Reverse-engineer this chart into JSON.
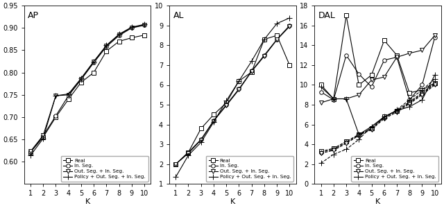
{
  "K": [
    1,
    2,
    3,
    4,
    5,
    6,
    7,
    8,
    9,
    10
  ],
  "AP": {
    "Real": [
      0.621,
      0.655,
      0.7,
      0.74,
      0.778,
      0.8,
      0.848,
      0.87,
      0.878,
      0.884
    ],
    "In_Seg": [
      0.622,
      0.658,
      0.703,
      0.748,
      0.784,
      0.822,
      0.858,
      0.883,
      0.9,
      0.906
    ],
    "Out_In_Seg": [
      0.623,
      0.659,
      0.748,
      0.75,
      0.786,
      0.824,
      0.86,
      0.885,
      0.901,
      0.907
    ],
    "Policy": [
      0.614,
      0.652,
      0.748,
      0.752,
      0.787,
      0.825,
      0.861,
      0.886,
      0.902,
      0.908
    ]
  },
  "AP_ylim": [
    0.55,
    0.95
  ],
  "AP_yticks": [
    0.6,
    0.65,
    0.7,
    0.75,
    0.8,
    0.85,
    0.9,
    0.95
  ],
  "AL": {
    "Real": [
      2.0,
      2.6,
      3.8,
      4.5,
      5.1,
      6.2,
      6.65,
      8.3,
      8.5,
      7.0
    ],
    "In_Seg": [
      2.0,
      2.6,
      3.25,
      4.2,
      5.0,
      5.8,
      6.7,
      7.5,
      8.3,
      9.0
    ],
    "Out_In_Seg": [
      2.0,
      2.55,
      3.22,
      4.18,
      4.96,
      5.76,
      6.68,
      7.45,
      8.28,
      8.95
    ],
    "Policy": [
      1.35,
      2.45,
      3.1,
      4.12,
      5.2,
      6.2,
      7.2,
      8.3,
      9.1,
      9.38
    ]
  },
  "AL_ylim": [
    1,
    10
  ],
  "AL_yticks": [
    1,
    2,
    3,
    4,
    5,
    6,
    7,
    8,
    9,
    10
  ],
  "DAL_upper": {
    "Real": [
      10.0,
      8.6,
      17.0,
      10.0,
      11.0,
      14.5,
      13.0,
      9.2,
      9.5,
      10.2
    ],
    "In_Seg": [
      9.3,
      8.5,
      13.0,
      11.1,
      9.8,
      12.5,
      12.8,
      8.5,
      10.0,
      14.8
    ],
    "Out_In_Seg": [
      8.2,
      8.6,
      8.6,
      9.0,
      10.5,
      10.8,
      12.8,
      13.2,
      13.5,
      15.0
    ],
    "Policy": [
      9.8,
      8.6,
      8.6,
      5.0,
      5.8,
      6.8,
      7.4,
      7.8,
      8.5,
      11.0
    ]
  },
  "DAL_lower": {
    "Real": [
      3.3,
      3.6,
      4.3,
      5.0,
      5.6,
      6.8,
      7.4,
      8.3,
      9.2,
      10.2
    ],
    "In_Seg": [
      3.2,
      3.5,
      4.2,
      4.95,
      5.55,
      6.7,
      7.35,
      8.2,
      9.1,
      10.1
    ],
    "Out_In_Seg": [
      3.1,
      3.4,
      4.1,
      4.9,
      5.5,
      6.6,
      7.25,
      8.1,
      9.0,
      10.0
    ],
    "Policy": [
      2.1,
      3.0,
      3.5,
      4.5,
      5.8,
      6.7,
      7.5,
      8.5,
      9.5,
      10.6
    ]
  },
  "DAL_ylim": [
    0,
    18
  ],
  "DAL_yticks": [
    0,
    2,
    4,
    6,
    8,
    10,
    12,
    14,
    16,
    18
  ],
  "legend_labels": [
    "Real",
    "In. Seg.",
    "Out. Seg. + In. Seg.",
    "Policy + Out. Seg. + In. Seg."
  ],
  "line_color": "#000000",
  "marker_size": 4,
  "marker_size_plus": 6,
  "linewidth": 0.8
}
